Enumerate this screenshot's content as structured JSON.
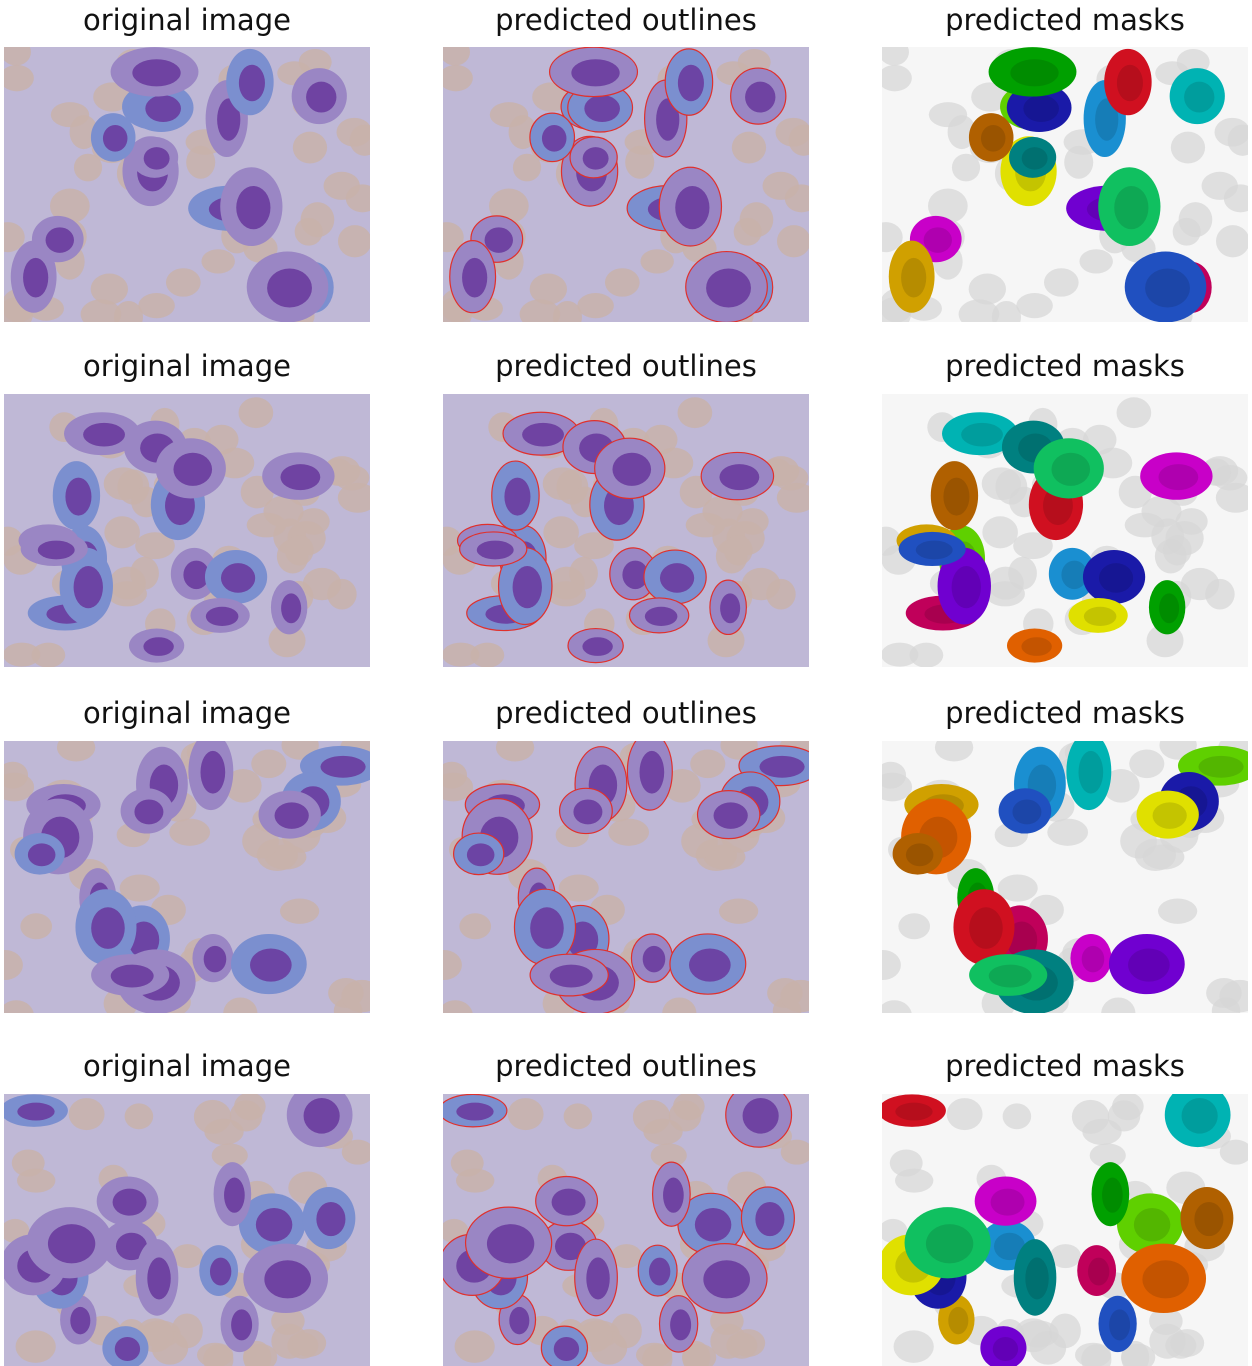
{
  "figure": {
    "rows": [
      {
        "titles": [
          "original image",
          "predicted outlines",
          "predicted masks"
        ]
      },
      {
        "titles": [
          "original image",
          "predicted outlines",
          "predicted masks"
        ]
      },
      {
        "titles": [
          "original image",
          "predicted outlines",
          "predicted masks"
        ]
      },
      {
        "titles": [
          "original image",
          "predicted outlines",
          "predicted masks"
        ]
      }
    ]
  },
  "colors": {
    "background_stain": "#bfb8d6",
    "red_blood_cell": "#c8b2aa",
    "nucleus": "#6a3c9e",
    "outline": "#e0302c",
    "mask_background": "#f6f6f6"
  },
  "panel_types": [
    "original",
    "outlines",
    "masks"
  ]
}
